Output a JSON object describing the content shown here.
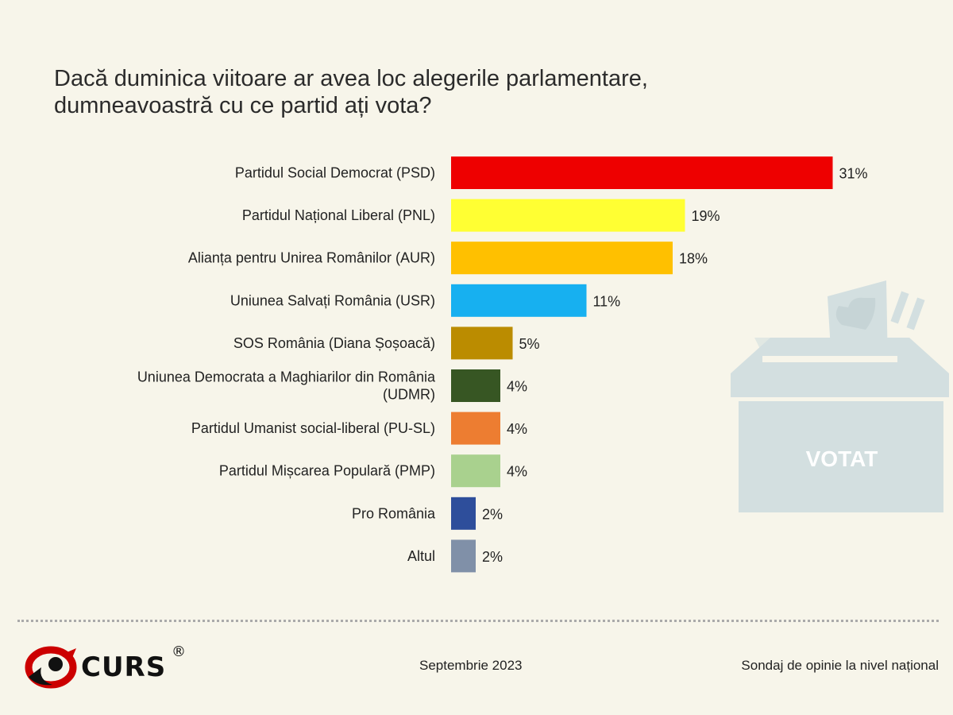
{
  "title": "Dacă duminica viitoare ar avea loc alegerile parlamentare,\ndumneavoastră cu ce partid ați vota?",
  "chart_data": {
    "type": "bar",
    "orientation": "horizontal",
    "title": "Dacă duminica viitoare ar avea loc alegerile parlamentare, dumneavoastră cu ce partid ați vota?",
    "categories": [
      [
        "Partidul Social Democrat (PSD)"
      ],
      [
        "Partidul Național Liberal (PNL)"
      ],
      [
        "Alianța pentru Unirea Românilor (AUR)"
      ],
      [
        "Uniunea Salvați România (USR)"
      ],
      [
        "SOS România (Diana Șoșoacă)"
      ],
      [
        "Uniunea Democrata a Maghiarilor din România",
        "(UDMR)"
      ],
      [
        "Partidul Umanist social-liberal (PU-SL)"
      ],
      [
        "Partidul Mișcarea Populară (PMP)"
      ],
      [
        "Pro România"
      ],
      [
        "Altul"
      ]
    ],
    "values": [
      31,
      19,
      18,
      11,
      5,
      4,
      4,
      4,
      2,
      2
    ],
    "value_labels": [
      "31%",
      "19%",
      "18%",
      "11%",
      "5%",
      "4%",
      "4%",
      "4%",
      "2%",
      "2%"
    ],
    "colors": [
      "#ee0000",
      "#ffff33",
      "#ffc000",
      "#17b0f0",
      "#bb8c00",
      "#375623",
      "#ed7d31",
      "#a9d18e",
      "#2e4e9b",
      "#8090a8"
    ],
    "unit": "%",
    "grid": false,
    "legend": "none"
  },
  "ballot_box": {
    "label": "VOTAT"
  },
  "footer": {
    "logo_text": "CURS",
    "logo_reg": "®",
    "date": "Septembrie 2023",
    "source": "Sondaj de opinie la nivel național"
  }
}
